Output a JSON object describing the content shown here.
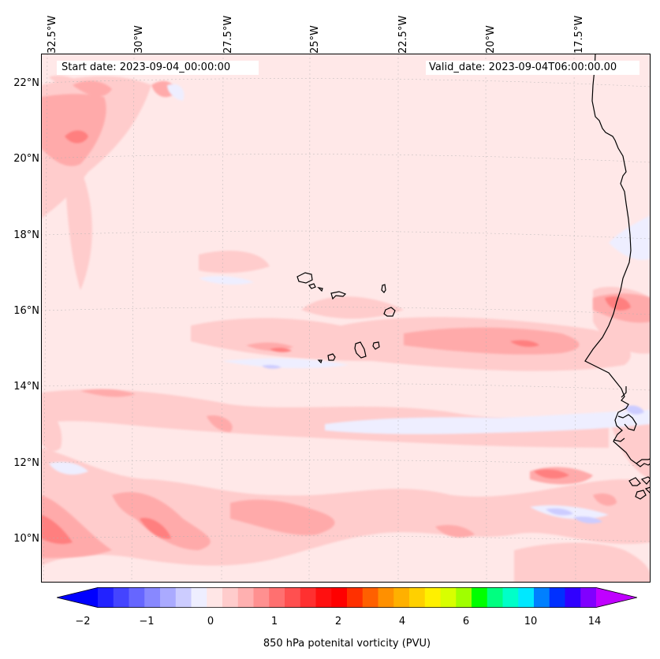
{
  "header": {
    "start_date": "Start date: 2023-09-04_00:00:00",
    "valid_date": "Valid_date: 2023-09-04T06:00:00.00"
  },
  "axes": {
    "lon_labels": [
      "32.5°W",
      "30°W",
      "27.5°W",
      "25°W",
      "22.5°W",
      "20°W",
      "17.5°W"
    ],
    "lat_labels": [
      "22°N",
      "20°N",
      "18°N",
      "16°N",
      "14°N",
      "12°N",
      "10°N"
    ]
  },
  "colorbar": {
    "label": "850 hPa potenital vorticity (PVU)",
    "ticks": [
      "−2",
      "−1",
      "0",
      "1",
      "2",
      "4",
      "6",
      "10",
      "14"
    ],
    "colors": [
      "#0000ff",
      "#2222ff",
      "#4444ff",
      "#6666ff",
      "#8888ff",
      "#aaaaff",
      "#ccccff",
      "#eeeeff",
      "#ffe6e6",
      "#ffcccc",
      "#ffb0b0",
      "#ff9090",
      "#ff7070",
      "#ff5050",
      "#ff3030",
      "#ff1010",
      "#ff0000",
      "#ff3000",
      "#ff6000",
      "#ff9000",
      "#ffb000",
      "#ffd000",
      "#fff000",
      "#d8ff00",
      "#a0ff00",
      "#00ff00",
      "#00ff80",
      "#00ffc8",
      "#00e8ff",
      "#0080ff",
      "#0030ff",
      "#3000ff",
      "#8000ff",
      "#c000ff"
    ]
  },
  "map_colors": {
    "background": "#ffe8e8",
    "light": "#ffcccc",
    "medium": "#ffaaaa",
    "strong": "#ff7f7f",
    "blue_light": "#eeeeff",
    "blue": "#ccccff",
    "coast": "#000000"
  }
}
